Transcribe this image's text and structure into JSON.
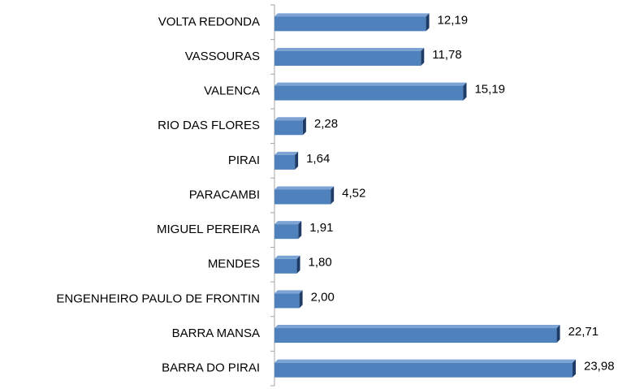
{
  "chart_data": {
    "type": "bar",
    "orientation": "horizontal",
    "categories": [
      "VOLTA REDONDA",
      "VASSOURAS",
      "VALENCA",
      "RIO DAS FLORES",
      "PIRAI",
      "PARACAMBI",
      "MIGUEL PEREIRA",
      "MENDES",
      "ENGENHEIRO PAULO DE FRONTIN",
      "BARRA MANSA",
      "BARRA DO PIRAI"
    ],
    "values": [
      12.19,
      11.78,
      15.19,
      2.28,
      1.64,
      4.52,
      1.91,
      1.8,
      2.0,
      22.71,
      23.98
    ],
    "value_labels": [
      "12,19",
      "11,78",
      "15,19",
      "2,28",
      "1,64",
      "4,52",
      "1,91",
      "1,80",
      "2,00",
      "22,71",
      "23,98"
    ],
    "color": "#4f81bd"
  }
}
